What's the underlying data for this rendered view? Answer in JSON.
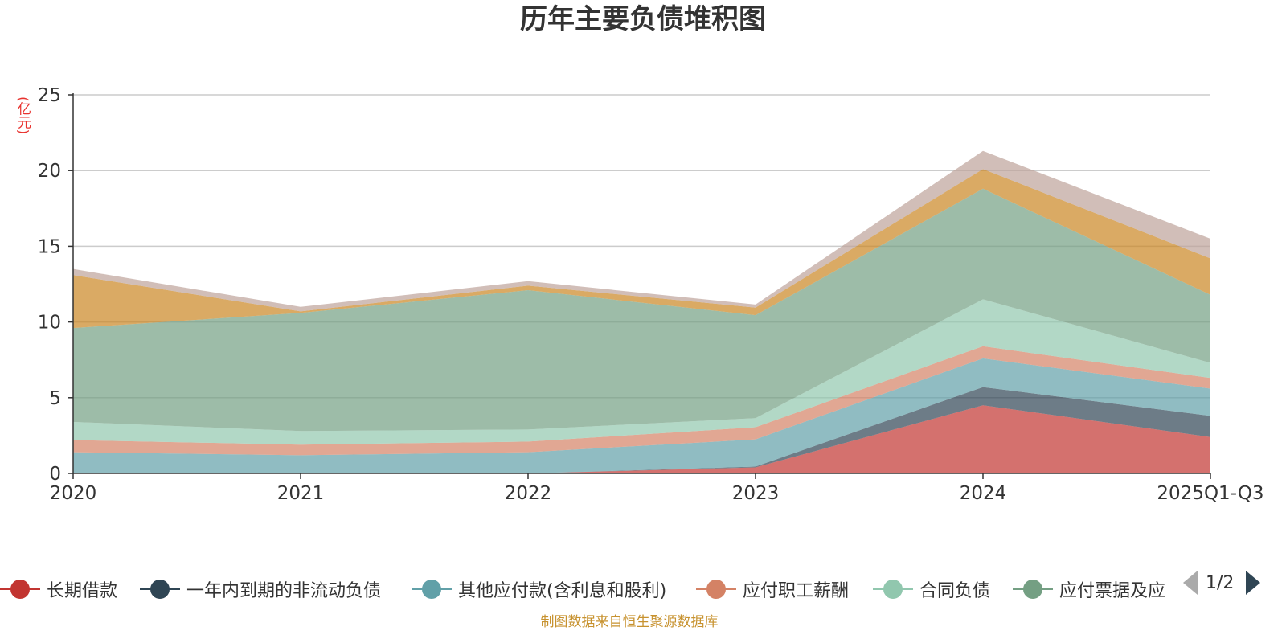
{
  "chart_data": {
    "type": "area",
    "stacked": true,
    "title": "历年主要负债堆积图",
    "ylabel": "(亿元)",
    "xlabel": "",
    "categories": [
      "2020",
      "2021",
      "2022",
      "2023",
      "2024",
      "2025Q1-Q3"
    ],
    "ylim": [
      0,
      25
    ],
    "yticks": [
      0,
      5,
      10,
      15,
      20,
      25
    ],
    "grid": true,
    "legend_position": "bottom",
    "series": [
      {
        "name": "长期借款",
        "color": "#c23531",
        "values": [
          0,
          0,
          0,
          0.4,
          4.5,
          2.4
        ]
      },
      {
        "name": "一年内到期的非流动负债",
        "color": "#2f4554",
        "values": [
          0,
          0,
          0,
          0.05,
          1.2,
          1.4
        ]
      },
      {
        "name": "其他应付款(含利息和股利)",
        "color": "#61a0a8",
        "values": [
          1.4,
          1.2,
          1.4,
          1.8,
          1.9,
          1.8
        ]
      },
      {
        "name": "应付职工薪酬",
        "color": "#d48265",
        "values": [
          0.8,
          0.7,
          0.7,
          0.8,
          0.8,
          0.7
        ]
      },
      {
        "name": "合同负债",
        "color": "#91c7ae",
        "values": [
          1.2,
          0.9,
          0.8,
          0.6,
          3.1,
          1.0
        ]
      },
      {
        "name": "应付票据及应付账款",
        "color": "#749f83",
        "values": [
          6.2,
          7.8,
          9.2,
          6.8,
          7.3,
          4.5
        ]
      },
      {
        "name": "",
        "color": "#ca8622",
        "values": [
          3.5,
          0.1,
          0.3,
          0.5,
          1.3,
          2.4
        ]
      },
      {
        "name": "",
        "color": "#bda29a",
        "values": [
          0.4,
          0.3,
          0.3,
          0.2,
          1.2,
          1.3
        ]
      }
    ]
  },
  "legend": {
    "items": [
      "长期借款",
      "一年内到期的非流动负债",
      "其他应付款(含利息和股利)",
      "应付职工薪酬",
      "合同负债",
      "应付票据及应"
    ],
    "page_text": "1/2"
  },
  "source_note": "制图数据来自恒生聚源数据库"
}
